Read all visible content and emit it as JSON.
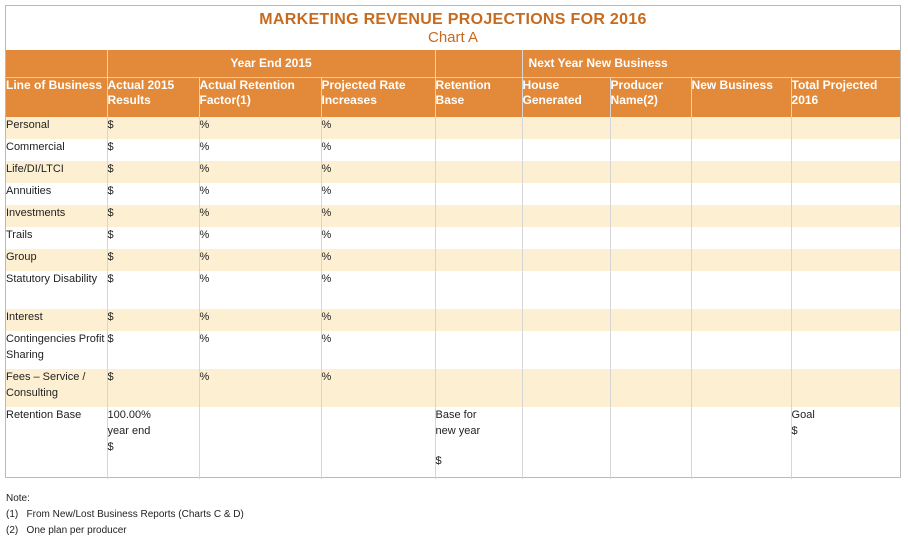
{
  "title": "MARKETING REVENUE PROJECTIONS FOR 2016",
  "subtitle": "Chart A",
  "group_headers": {
    "year_end": "Year End 2015",
    "next_year": "Next Year New Business"
  },
  "columns": [
    "Line of Business",
    "Actual 2015 Results",
    "Actual Retention Factor(1)",
    "Projected Rate Increases",
    "Retention Base",
    "House Generated",
    "Producer Name(2)",
    "New Business",
    "Total Projected 2016"
  ],
  "rows": [
    {
      "line": "Personal",
      "actual": "$",
      "retention": "%",
      "rate": "%"
    },
    {
      "line": "Commercial",
      "actual": "$",
      "retention": "%",
      "rate": "%"
    },
    {
      "line": "Life/DI/LTCI",
      "actual": "$",
      "retention": "%",
      "rate": "%"
    },
    {
      "line": "Annuities",
      "actual": "$",
      "retention": "%",
      "rate": "%"
    },
    {
      "line": "Investments",
      "actual": "$",
      "retention": "%",
      "rate": "%"
    },
    {
      "line": "Trails",
      "actual": "$",
      "retention": "%",
      "rate": "%"
    },
    {
      "line": "Group",
      "actual": "$",
      "retention": "%",
      "rate": "%"
    },
    {
      "line": "Statutory Disability",
      "actual": "$",
      "retention": "%",
      "rate": "%"
    },
    {
      "line": "Interest",
      "actual": "$",
      "retention": "%",
      "rate": "%"
    },
    {
      "line": "Contingencies Profit Sharing",
      "actual": "$",
      "retention": "%",
      "rate": "%"
    },
    {
      "line": "Fees – Service / Consulting",
      "actual": "$",
      "retention": "%",
      "rate": "%"
    }
  ],
  "retention_row": {
    "label": "Retention Base",
    "actual_line1": "100.00%",
    "actual_line2": "year end",
    "actual_line3": "$",
    "base_line1": "Base for",
    "base_line2": "new year",
    "base_line3": "$",
    "goal_label": "Goal",
    "goal_value": "$"
  },
  "notes": {
    "heading": "Note:",
    "n1": "(1)   From New/Lost Business Reports (Charts C & D)",
    "n2": "(2)   One plan per producer"
  }
}
